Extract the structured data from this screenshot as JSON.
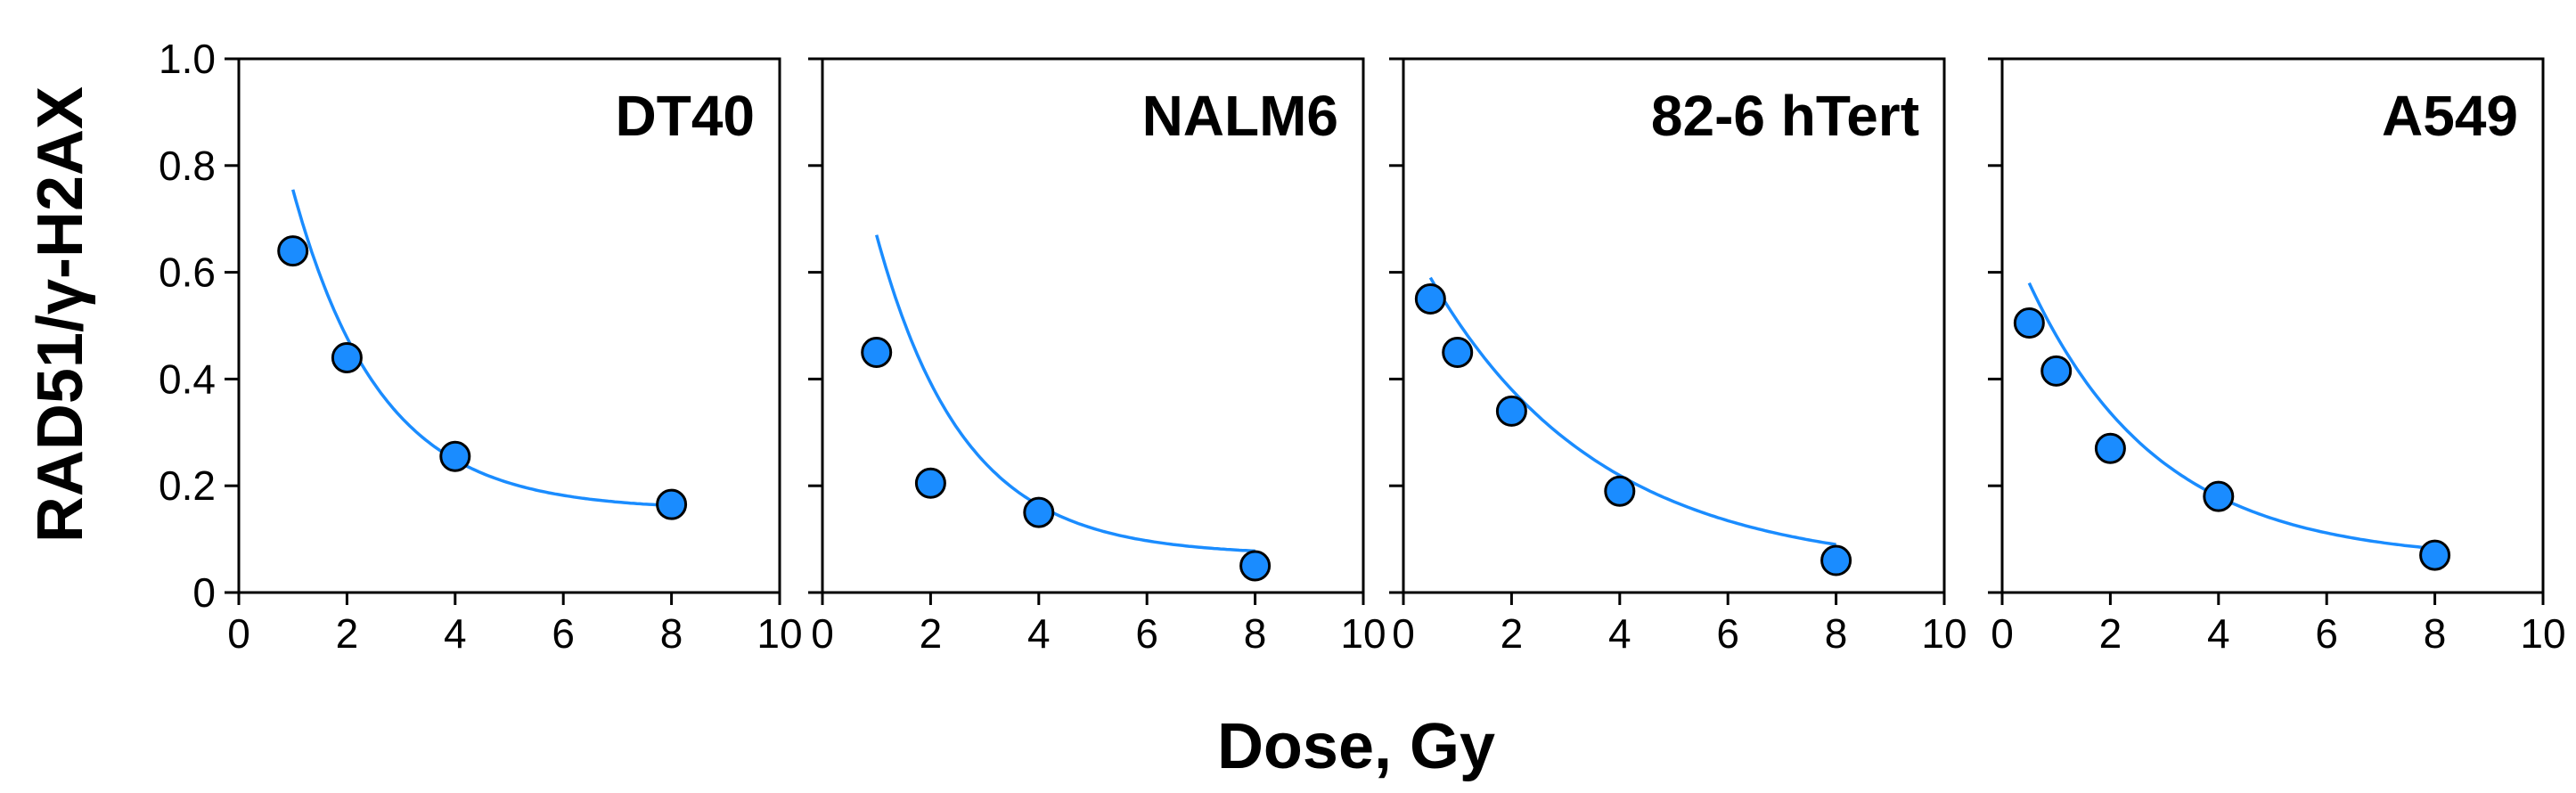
{
  "chart_data": {
    "type": "scatter",
    "ylabel": "RAD51/γ-H2AX",
    "xlabel": "Dose, Gy",
    "xlim": [
      0,
      10
    ],
    "ylim": [
      0,
      1.0
    ],
    "x_ticks": [
      "0",
      "2",
      "4",
      "6",
      "8",
      "10"
    ],
    "y_ticks": [
      "0",
      "0.2",
      "0.4",
      "0.6",
      "0.8",
      "1.0"
    ],
    "marker_color": "#1a8cff",
    "line_color": "#1a8cff",
    "grid": false,
    "panels": [
      {
        "title": "DT40",
        "points": [
          [
            1,
            0.64
          ],
          [
            2,
            0.44
          ],
          [
            4,
            0.255
          ],
          [
            8,
            0.165
          ]
        ],
        "fit": {
          "a": 0.6,
          "k": 0.62,
          "c": 0.155
        }
      },
      {
        "title": "NALM6",
        "points": [
          [
            1,
            0.45
          ],
          [
            2,
            0.205
          ],
          [
            4,
            0.15
          ],
          [
            8,
            0.05
          ]
        ],
        "fit": {
          "a": 0.6,
          "k": 0.62,
          "c": 0.07
        }
      },
      {
        "title": "82-6 hTert",
        "points": [
          [
            0.5,
            0.55
          ],
          [
            1,
            0.45
          ],
          [
            2,
            0.34
          ],
          [
            4,
            0.19
          ],
          [
            8,
            0.06
          ]
        ],
        "fit": {
          "a": 0.55,
          "k": 0.32,
          "c": 0.04
        }
      },
      {
        "title": "A549",
        "points": [
          [
            0.5,
            0.505
          ],
          [
            1,
            0.415
          ],
          [
            2,
            0.27
          ],
          [
            4,
            0.18
          ],
          [
            8,
            0.07
          ]
        ],
        "fit": {
          "a": 0.52,
          "k": 0.42,
          "c": 0.06
        }
      }
    ]
  }
}
